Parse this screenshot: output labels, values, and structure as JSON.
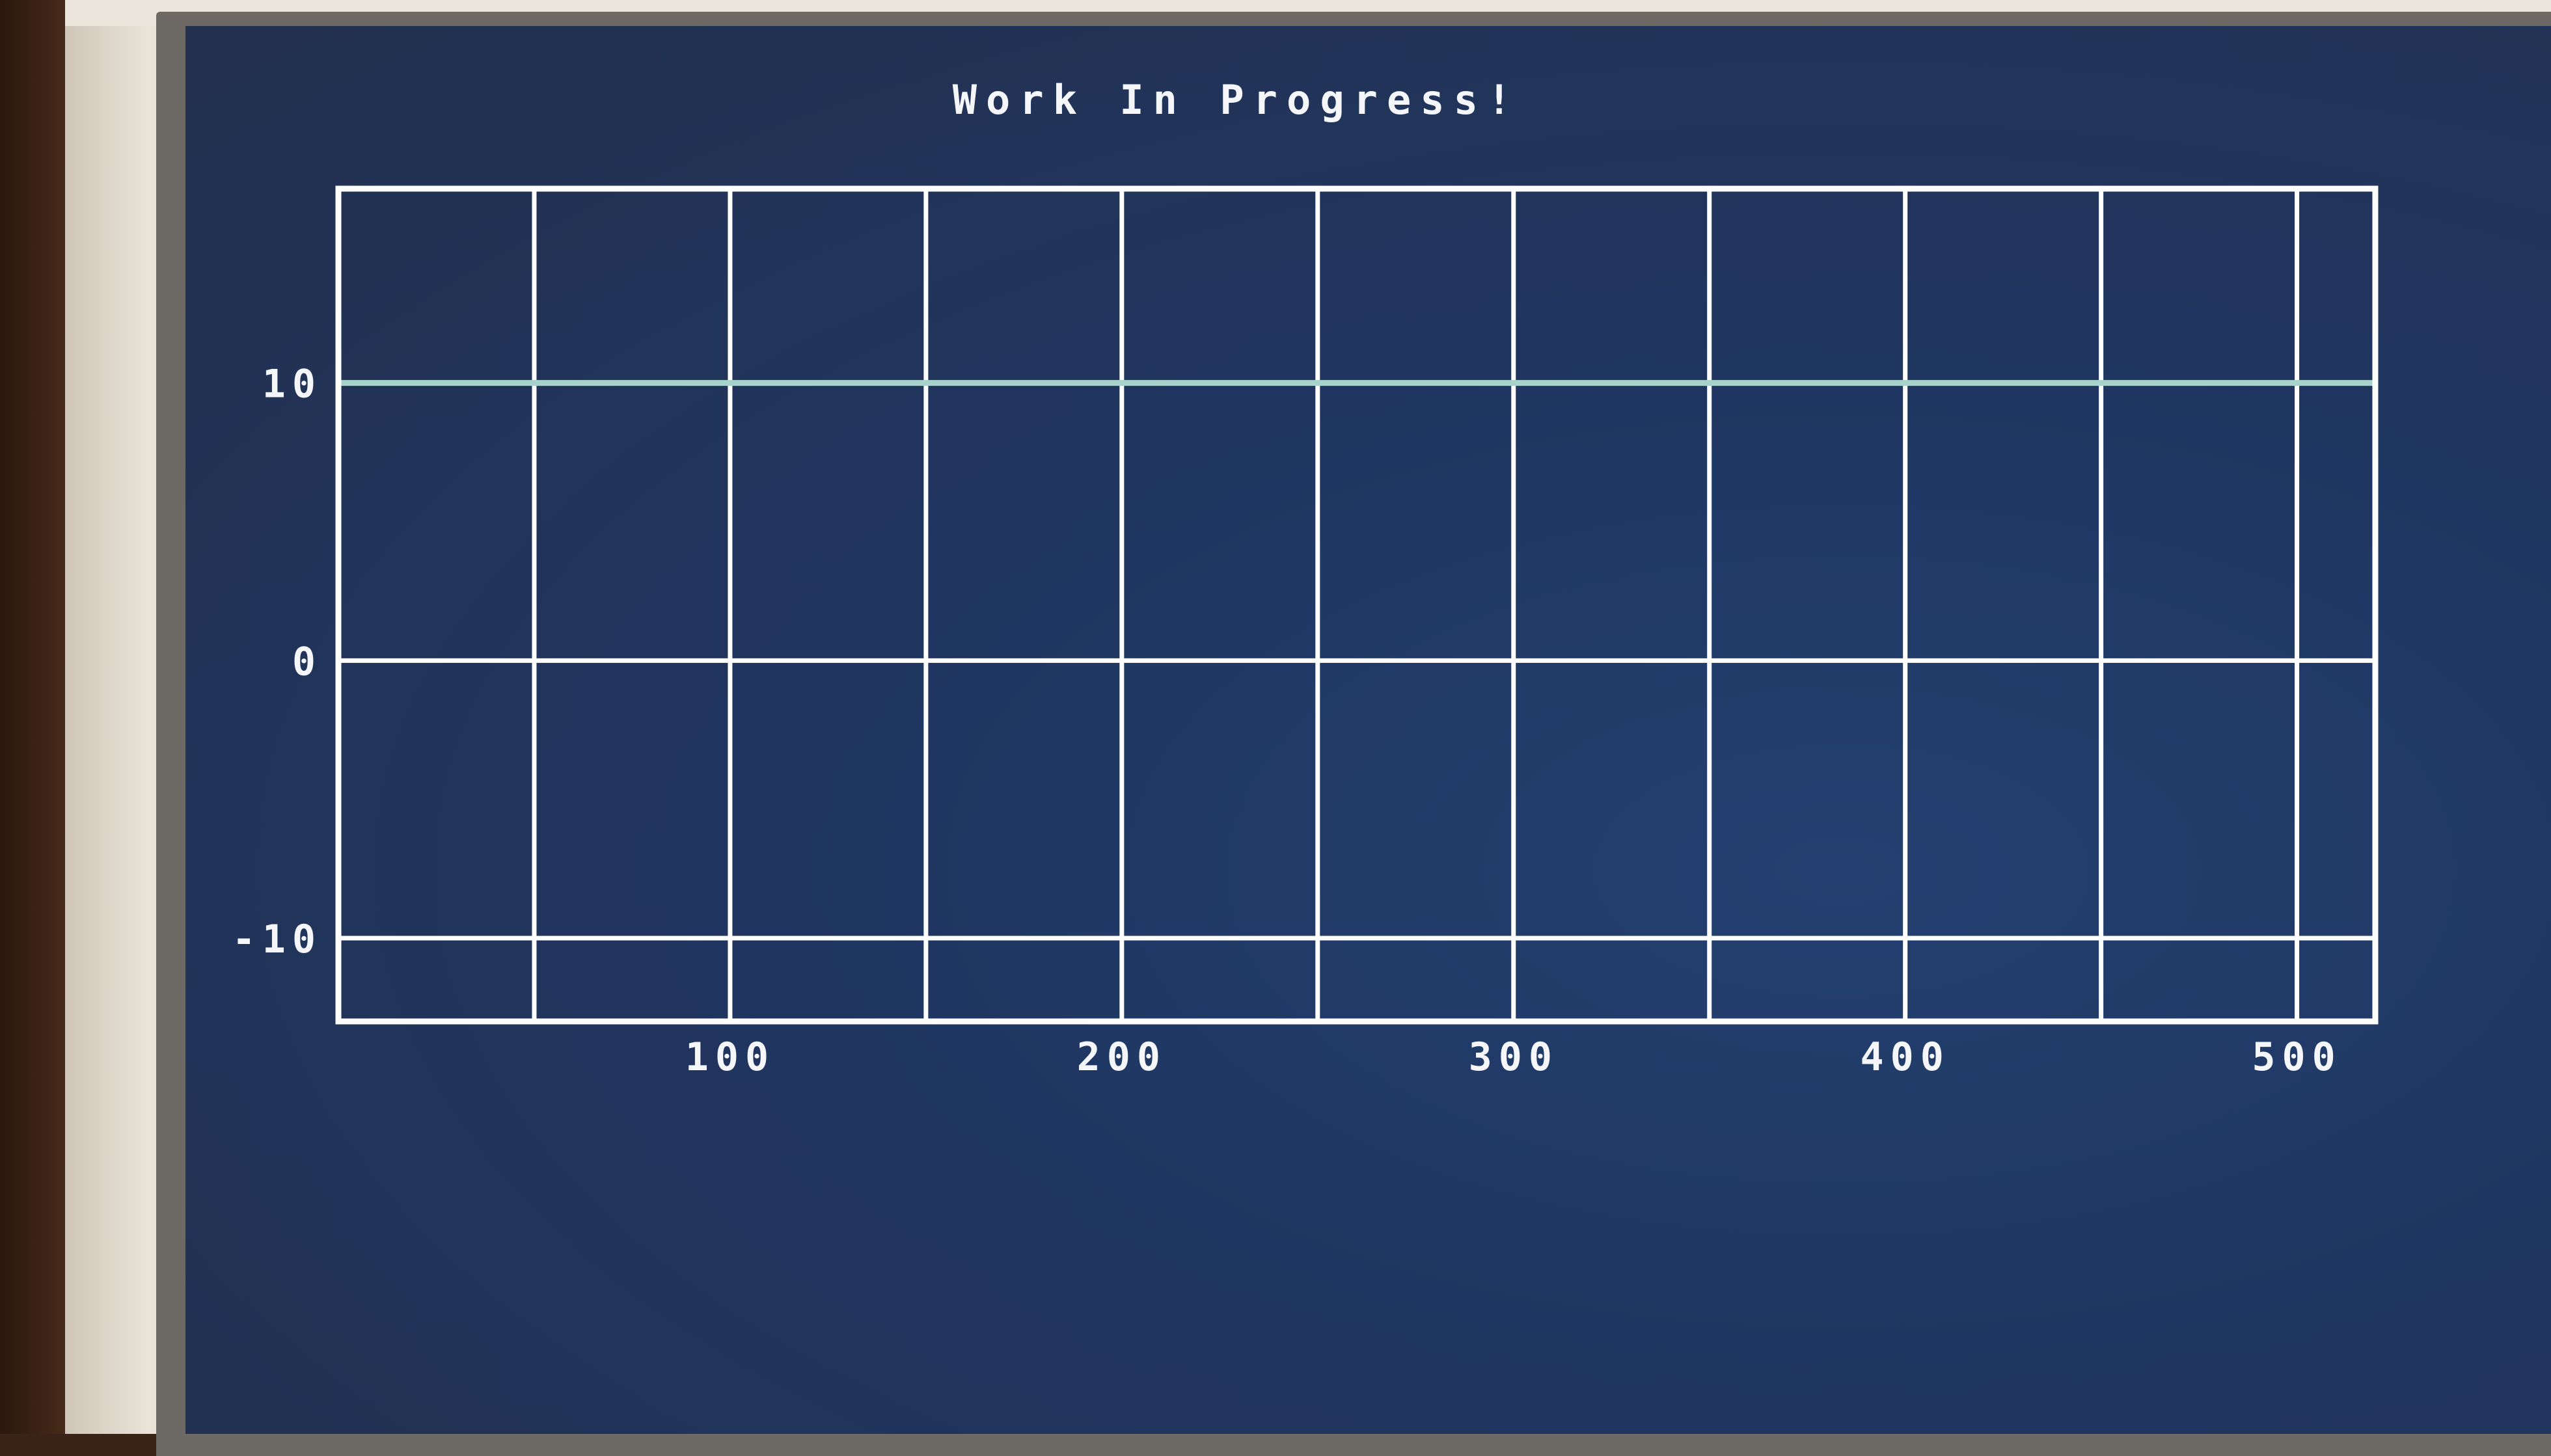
{
  "chart_data": {
    "type": "line",
    "title": "Work In Progress!",
    "xlabel": "",
    "ylabel": "",
    "xlim": [
      0,
      520
    ],
    "ylim": [
      -13,
      17
    ],
    "x_ticks": [
      "100",
      "200",
      "300",
      "400",
      "500"
    ],
    "y_ticks": [
      "10",
      "0",
      "-10"
    ],
    "grid": true,
    "series": [
      {
        "x": [
          0,
          520
        ],
        "values": [
          10,
          10
        ]
      }
    ],
    "colors": {
      "axes": "#ffffff",
      "series": "#a8d2cc",
      "text": "#f4f6fa"
    }
  }
}
